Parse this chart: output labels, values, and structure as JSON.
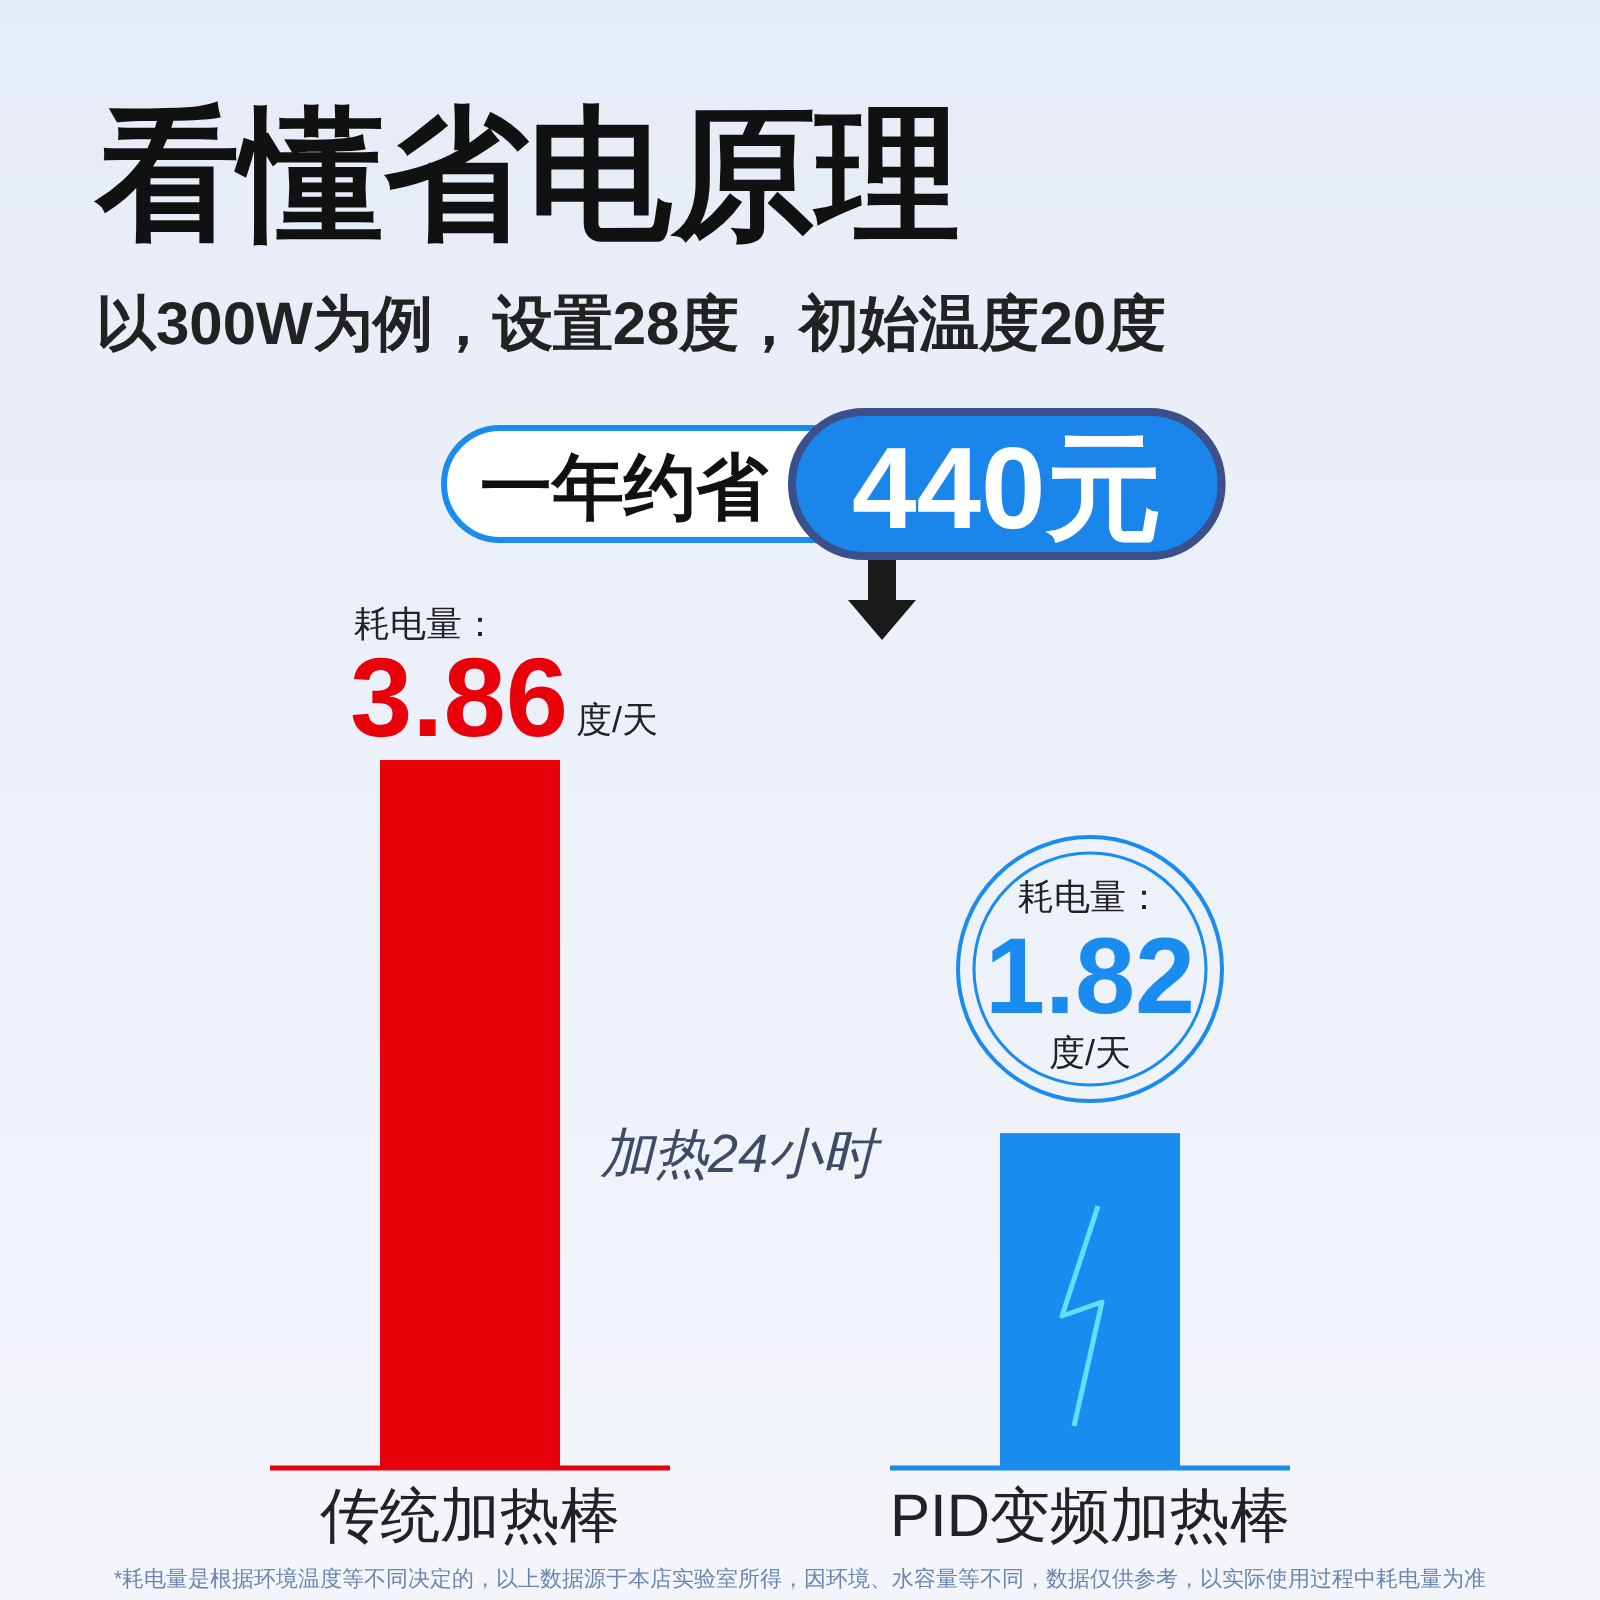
{
  "chart_data": {
    "type": "bar",
    "title": "看懂省电原理",
    "subtitle": "以300W为例，设置28度，初始温度20度",
    "categories": [
      "传统加热棒",
      "PID变频加热棒"
    ],
    "values": [
      3.86,
      1.82
    ],
    "colors": [
      "#e8000b",
      "#1a8cf0"
    ],
    "data_labels": true,
    "annotations": [
      "一年约省",
      "440元",
      "耗电量：",
      {
        "text": "度/天",
        "x": "传统加热棒",
        "y": 3.86
      },
      "耗电量：",
      {
        "text": "度/天",
        "x": "PID变频加热棒",
        "y": 1.82
      },
      "加热24小时",
      "*耗电量是根据环境温度等不同决定的，以上数据源于本店实验室所得，因环境、水容量等不同，数据仅供参考，以实际使用过程中耗电量为准"
    ]
  }
}
